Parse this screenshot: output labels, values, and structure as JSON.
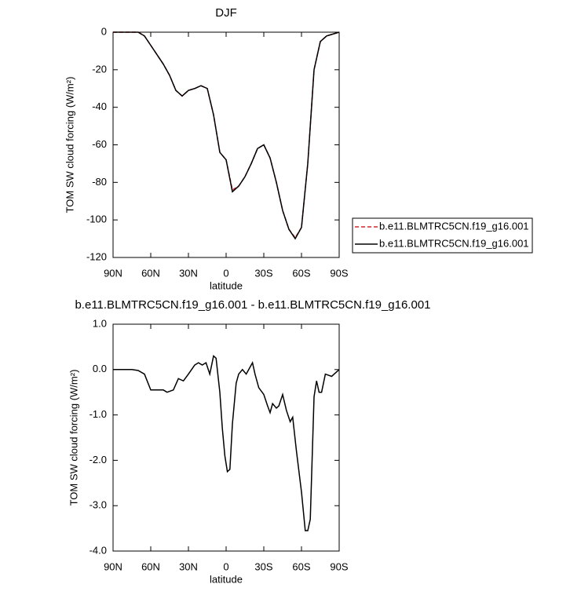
{
  "chart_data": [
    {
      "type": "line",
      "title": "DJF",
      "xlabel": "latitude",
      "ylabel": "TOM SW cloud forcing (W/m²)",
      "x": [
        90,
        85,
        80,
        75,
        70,
        65,
        60,
        55,
        50,
        45,
        40,
        35,
        30,
        25,
        20,
        15,
        10,
        5,
        0,
        -5,
        -10,
        -15,
        -20,
        -25,
        -30,
        -35,
        -40,
        -45,
        -50,
        -55,
        -60,
        -65,
        -70,
        -75,
        -80,
        -85,
        -90
      ],
      "series": [
        {
          "name": "b.e11.BLMTRC5CN.f19_g16.001",
          "color": "#d62728",
          "dash": true,
          "values": [
            0,
            0,
            0,
            0,
            0,
            -2,
            -7,
            -12,
            -17,
            -23,
            -31,
            -34,
            -31,
            -30,
            -28.5,
            -30,
            -44,
            -64,
            -68,
            -84,
            -82,
            -77,
            -70,
            -62,
            -60,
            -67,
            -80,
            -95,
            -105,
            -109.5,
            -104,
            -70,
            -20,
            -5,
            -2,
            -1,
            0
          ]
        },
        {
          "name": "b.e11.BLMTRC5CN.f19_g16.001",
          "color": "#000000",
          "dash": false,
          "values": [
            0,
            0,
            0,
            0,
            0,
            -2,
            -7,
            -12,
            -17,
            -23,
            -31,
            -34,
            -31,
            -30,
            -28.5,
            -30,
            -44,
            -64,
            -68,
            -85,
            -82,
            -77,
            -70,
            -62,
            -60,
            -67,
            -80,
            -95,
            -105,
            -110,
            -104,
            -70,
            -20,
            -5,
            -2,
            -1,
            0
          ]
        }
      ],
      "xlim": [
        90,
        -90
      ],
      "xticks": [
        {
          "value": 90,
          "label": "90N"
        },
        {
          "value": 60,
          "label": "60N"
        },
        {
          "value": 30,
          "label": "30N"
        },
        0,
        {
          "value": -30,
          "label": "30S"
        },
        {
          "value": -60,
          "label": "60S"
        },
        {
          "value": -90,
          "label": "90S"
        }
      ],
      "ylim": [
        -120,
        0
      ],
      "yticks": [
        0,
        -20,
        -40,
        -60,
        -80,
        -100,
        -120
      ],
      "legend": "right"
    },
    {
      "type": "line",
      "title": "b.e11.BLMTRC5CN.f19_g16.001 - b.e11.BLMTRC5CN.f19_g16.001",
      "xlabel": "latitude",
      "ylabel": "TOM SW cloud forcing (W/m²)",
      "x": [
        90,
        85,
        80,
        75,
        70,
        65,
        60,
        55,
        50,
        47,
        42,
        38,
        34,
        30,
        25,
        22,
        19,
        16,
        13,
        10,
        8,
        5,
        3,
        1,
        -1,
        -3,
        -5,
        -8,
        -10,
        -13,
        -16,
        -19,
        -21,
        -23,
        -26,
        -30,
        -33,
        -35,
        -37,
        -40,
        -42,
        -45,
        -48,
        -51,
        -53,
        -56,
        -60,
        -63,
        -65,
        -67,
        -70,
        -72,
        -74,
        -76,
        -79,
        -84,
        -88,
        -90
      ],
      "series": [
        {
          "color": "#000000",
          "dash": false,
          "values": [
            0,
            0,
            0,
            0,
            -0.02,
            -0.1,
            -0.45,
            -0.45,
            -0.45,
            -0.5,
            -0.45,
            -0.2,
            -0.25,
            -0.1,
            0.1,
            0.15,
            0.1,
            0.15,
            -0.1,
            0.3,
            0.25,
            -0.5,
            -1.3,
            -1.9,
            -2.25,
            -2.2,
            -1.2,
            -0.3,
            -0.1,
            0,
            -0.1,
            0.05,
            0.15,
            -0.1,
            -0.4,
            -0.55,
            -0.8,
            -0.95,
            -0.75,
            -0.85,
            -0.8,
            -0.55,
            -0.9,
            -1.15,
            -1.05,
            -1.8,
            -2.7,
            -3.55,
            -3.55,
            -3.3,
            -0.6,
            -0.25,
            -0.5,
            -0.5,
            -0.1,
            -0.15,
            -0.05,
            0
          ]
        }
      ],
      "xlim": [
        90,
        -90
      ],
      "xticks": [
        {
          "value": 90,
          "label": "90N"
        },
        {
          "value": 60,
          "label": "60N"
        },
        {
          "value": 30,
          "label": "30N"
        },
        0,
        {
          "value": -30,
          "label": "30S"
        },
        {
          "value": -60,
          "label": "60S"
        },
        {
          "value": -90,
          "label": "90S"
        }
      ],
      "ylim": [
        -4,
        1
      ],
      "yticks": [
        {
          "value": 1,
          "label": "1.0"
        },
        {
          "value": 0,
          "label": "0.0"
        },
        {
          "value": -1,
          "label": "-1.0"
        },
        {
          "value": -2,
          "label": "-2.0"
        },
        {
          "value": -3,
          "label": "-3.0"
        },
        {
          "value": -4,
          "label": "-4.0"
        }
      ]
    }
  ]
}
